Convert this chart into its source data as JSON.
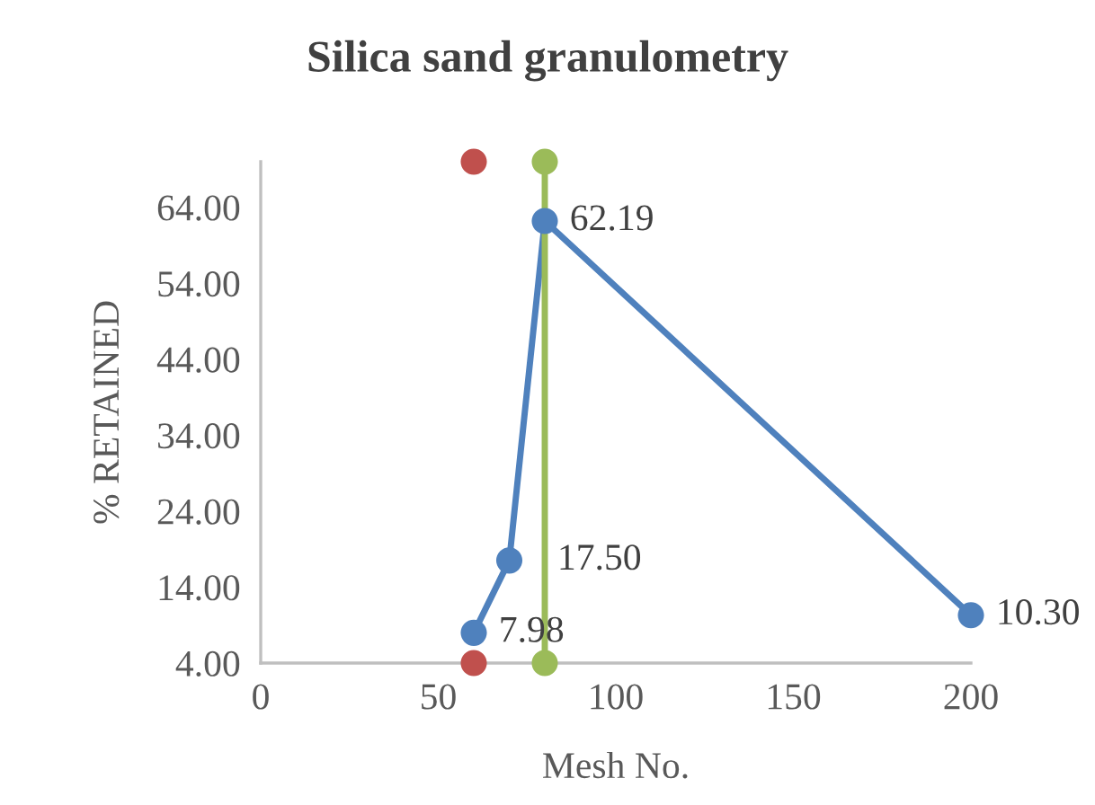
{
  "chart_data": {
    "type": "line",
    "title": "Silica sand granulometry",
    "xlabel": "Mesh No.",
    "ylabel": "% RETAINED",
    "xlim": [
      0,
      200
    ],
    "xticks": [
      0,
      50,
      100,
      150,
      200
    ],
    "ylim": [
      4,
      70
    ],
    "yticks": [
      {
        "value": 4,
        "label": "4.00"
      },
      {
        "value": 14,
        "label": "14.00"
      },
      {
        "value": 24,
        "label": "24.00"
      },
      {
        "value": 34,
        "label": "34.00"
      },
      {
        "value": 44,
        "label": "44.00"
      },
      {
        "value": 54,
        "label": "54.00"
      },
      {
        "value": 64,
        "label": "64.00"
      }
    ],
    "grid": false,
    "legend": false,
    "marker": "circle",
    "series": [
      {
        "color": "#4f81bd",
        "x": [
          60,
          70,
          80,
          200
        ],
        "values": [
          7.98,
          17.5,
          62.19,
          10.3
        ],
        "value_labels": [
          "7.98",
          "17.50",
          "62.19",
          "10.30"
        ]
      },
      {
        "type": "scatter",
        "color": "#c0504d",
        "x": [
          60,
          60
        ],
        "values": [
          4,
          70
        ]
      },
      {
        "color": "#9bbb59",
        "x": [
          80,
          80
        ],
        "values": [
          4,
          70
        ]
      }
    ]
  }
}
